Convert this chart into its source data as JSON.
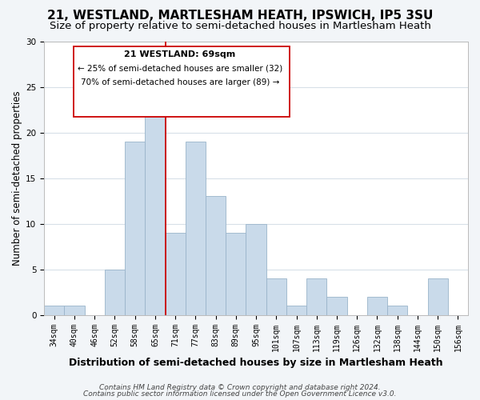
{
  "title": "21, WESTLAND, MARTLESHAM HEATH, IPSWICH, IP5 3SU",
  "subtitle": "Size of property relative to semi-detached houses in Martlesham Heath",
  "xlabel": "Distribution of semi-detached houses by size in Martlesham Heath",
  "ylabel": "Number of semi-detached properties",
  "footer_line1": "Contains HM Land Registry data © Crown copyright and database right 2024.",
  "footer_line2": "Contains public sector information licensed under the Open Government Licence v3.0.",
  "bin_labels": [
    "34sqm",
    "40sqm",
    "46sqm",
    "52sqm",
    "58sqm",
    "65sqm",
    "71sqm",
    "77sqm",
    "83sqm",
    "89sqm",
    "95sqm",
    "101sqm",
    "107sqm",
    "113sqm",
    "119sqm",
    "126sqm",
    "132sqm",
    "138sqm",
    "144sqm",
    "150sqm",
    "156sqm"
  ],
  "bin_values": [
    1,
    1,
    0,
    5,
    19,
    25,
    9,
    19,
    13,
    9,
    10,
    4,
    1,
    4,
    2,
    0,
    2,
    1,
    0,
    4,
    0
  ],
  "bar_color": "#c9daea",
  "bar_edge_color": "#9ab4ca",
  "property_line_color": "#cc0000",
  "annotation_title": "21 WESTLAND: 69sqm",
  "annotation_line1": "← 25% of semi-detached houses are smaller (32)",
  "annotation_line2": "70% of semi-detached houses are larger (89) →",
  "annotation_box_color": "#ffffff",
  "annotation_box_edge": "#cc0000",
  "ylim": [
    0,
    30
  ],
  "yticks": [
    0,
    5,
    10,
    15,
    20,
    25,
    30
  ],
  "background_color": "#f2f5f8",
  "plot_background": "#ffffff",
  "grid_color": "#d8e0e8",
  "title_fontsize": 11,
  "subtitle_fontsize": 9.5,
  "ylabel_fontsize": 8.5,
  "xlabel_fontsize": 9,
  "tick_fontsize": 7,
  "footer_fontsize": 6.5,
  "ann_title_fontsize": 8,
  "ann_text_fontsize": 7.5
}
